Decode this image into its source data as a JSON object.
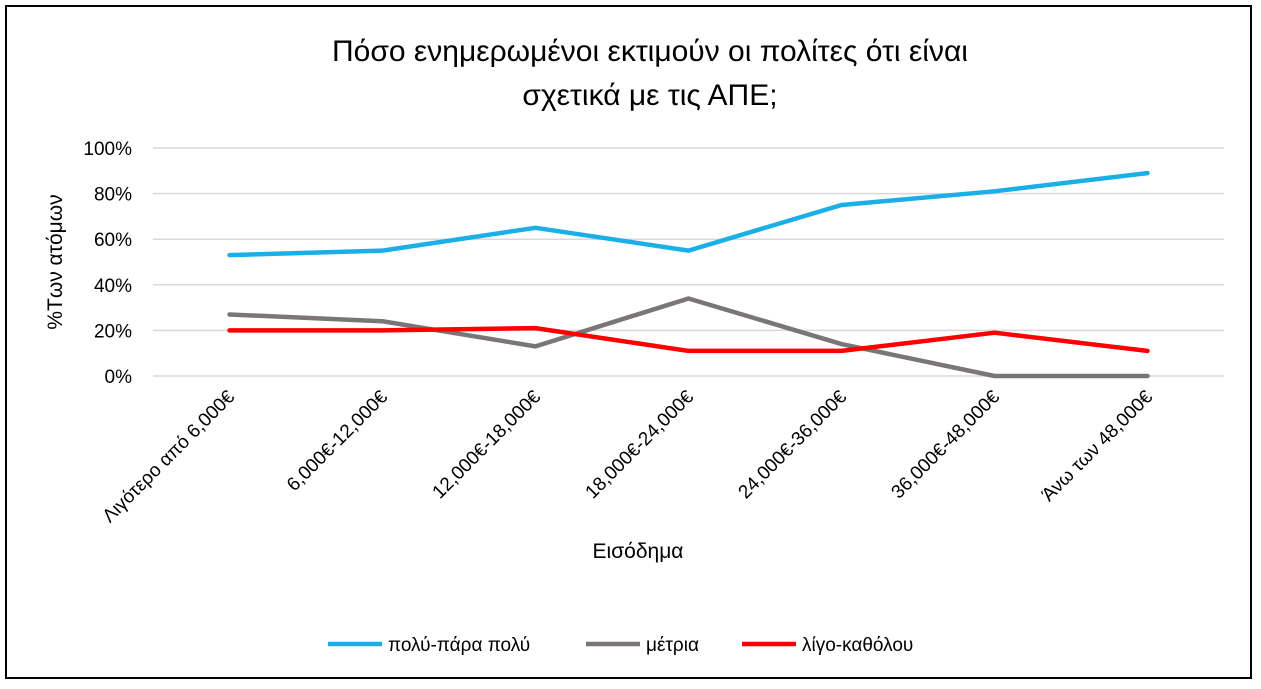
{
  "chart_data": {
    "type": "line",
    "title_line1": "Πόσο ενημερωμένοι εκτιμούν οι πολίτες ότι είναι",
    "title_line2": "σχετικά με τις ΑΠΕ;",
    "xlabel": "Εισόδημα",
    "ylabel": "%Των ατόμων",
    "categories": [
      "Λιγότερο από 6,000€",
      "6,000€-12,000€",
      "12,000€-18,000€",
      "18,000€-24,000€",
      "24,000€-36,000€",
      "36,000€-48,000€",
      "Άνω των 48,000€"
    ],
    "ylim": [
      0,
      100
    ],
    "yticks": [
      "0%",
      "20%",
      "40%",
      "60%",
      "80%",
      "100%"
    ],
    "grid": true,
    "legend_position": "bottom",
    "series": [
      {
        "name": "πολύ-πάρα πολύ",
        "color": "#1AAFE6",
        "values": [
          53,
          55,
          65,
          55,
          75,
          81,
          89
        ]
      },
      {
        "name": "μέτρια",
        "color": "#7A7678",
        "values": [
          27,
          24,
          13,
          34,
          14,
          0,
          0
        ]
      },
      {
        "name": "λίγο-καθόλου",
        "color": "#FF0000",
        "values": [
          20,
          20,
          21,
          11,
          11,
          19,
          11
        ]
      }
    ]
  }
}
